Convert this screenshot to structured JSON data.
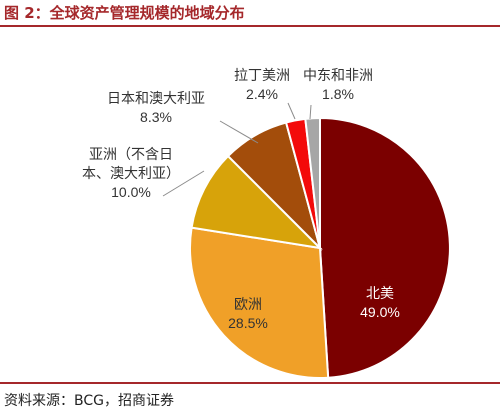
{
  "figure": {
    "title": "图 2：全球资产管理规模的地域分布",
    "source": "资料来源：BCG，招商证券"
  },
  "chart_data": {
    "type": "pie",
    "title": "图 2：全球资产管理规模的地域分布",
    "unit": "%",
    "slices": [
      {
        "label": [
          "北美"
        ],
        "value": 49.0,
        "value_label": "49.0%",
        "color": "#7b0000",
        "text_color": "#ffffff"
      },
      {
        "label": [
          "欧洲"
        ],
        "value": 28.5,
        "value_label": "28.5%",
        "color": "#f0a028",
        "text_color": "#333333"
      },
      {
        "label": [
          "亚洲（不含日",
          "本、澳大利亚）"
        ],
        "value": 10.0,
        "value_label": "10.0%",
        "color": "#d7a30a",
        "text_color": "#333333"
      },
      {
        "label": [
          "日本和澳大利亚"
        ],
        "value": 8.3,
        "value_label": "8.3%",
        "color": "#a34d0b",
        "text_color": "#333333"
      },
      {
        "label": [
          "拉丁美洲"
        ],
        "value": 2.4,
        "value_label": "2.4%",
        "color": "#f30a0a",
        "text_color": "#333333"
      },
      {
        "label": [
          "中东和非洲"
        ],
        "value": 1.8,
        "value_label": "1.8%",
        "color": "#a6a6a6",
        "text_color": "#333333"
      }
    ],
    "start_angle": "12 o'clock",
    "direction": "clockwise",
    "legend": "none"
  }
}
